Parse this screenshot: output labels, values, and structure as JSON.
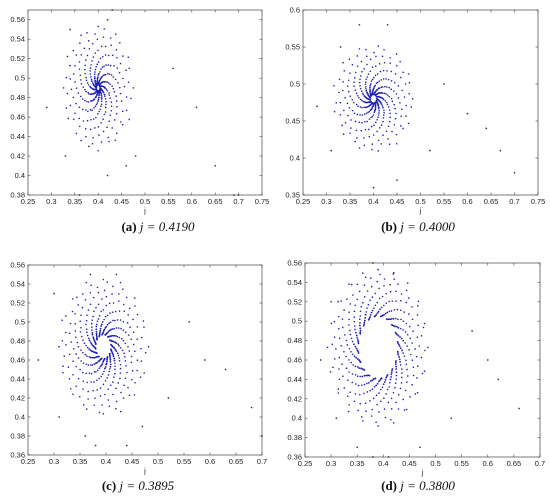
{
  "chart_data": [
    {
      "type": "scatter",
      "panel_tag": "(a)",
      "caption_eq": "j = 0.4190",
      "xlabel": "j",
      "ylabel": "",
      "xlim": [
        0.25,
        0.75
      ],
      "ylim": [
        0.38,
        0.57
      ],
      "xticks": [
        "0.25",
        "0.3",
        "0.35",
        "0.4",
        "0.45",
        "0.5",
        "0.55",
        "0.6",
        "0.65",
        "0.7",
        "0.75"
      ],
      "yticks": [
        "0.38",
        "0.4",
        "0.42",
        "0.44",
        "0.46",
        "0.48",
        "0.5",
        "0.52",
        "0.54",
        "0.56"
      ],
      "spiral": {
        "center": [
          0.4,
          0.49
        ],
        "inner_radius": 0.004,
        "outer_radius": 0.075,
        "arms": 12,
        "points_per_arm": 26,
        "turn": 1.6
      },
      "series": [
        {
          "color": "#1f1fb4",
          "x": [
            0.69,
            0.7,
            0.65,
            0.61,
            0.56,
            0.42,
            0.42,
            0.34,
            0.29,
            0.33,
            0.38,
            0.36,
            0.43,
            0.46,
            0.48
          ],
          "y": [
            0.38,
            0.38,
            0.41,
            0.47,
            0.51,
            0.56,
            0.4,
            0.55,
            0.47,
            0.42,
            0.43,
            0.38,
            0.57,
            0.41,
            0.42
          ]
        }
      ],
      "grid": false,
      "legend": "none"
    },
    {
      "type": "scatter",
      "panel_tag": "(b)",
      "caption_eq": "j = 0.4000",
      "xlabel": "j",
      "ylabel": "",
      "xlim": [
        0.25,
        0.75
      ],
      "ylim": [
        0.35,
        0.6
      ],
      "xticks": [
        "0.25",
        "0.3",
        "0.35",
        "0.4",
        "0.45",
        "0.5",
        "0.55",
        "0.6",
        "0.65",
        "0.7",
        "0.75"
      ],
      "yticks": [
        "0.35",
        "0.4",
        "0.45",
        "0.5",
        "0.55",
        "0.6"
      ],
      "spiral": {
        "center": [
          0.4,
          0.48
        ],
        "inner_radius": 0.007,
        "outer_radius": 0.085,
        "arms": 13,
        "points_per_arm": 26,
        "turn": 1.5
      },
      "series": [
        {
          "color": "#1f1fb4",
          "x": [
            0.7,
            0.67,
            0.64,
            0.6,
            0.55,
            0.43,
            0.37,
            0.33,
            0.28,
            0.31,
            0.4,
            0.45,
            0.52
          ],
          "y": [
            0.38,
            0.41,
            0.44,
            0.46,
            0.5,
            0.58,
            0.58,
            0.55,
            0.47,
            0.41,
            0.36,
            0.37,
            0.41
          ]
        }
      ],
      "grid": false,
      "legend": "none"
    },
    {
      "type": "scatter",
      "panel_tag": "(c)",
      "caption_eq": "j = 0.3895",
      "xlabel": "j",
      "ylabel": "",
      "xlim": [
        0.25,
        0.7
      ],
      "ylim": [
        0.36,
        0.56
      ],
      "xticks": [
        "0.25",
        "0.3",
        "0.35",
        "0.4",
        "0.45",
        "0.5",
        "0.55",
        "0.6",
        "0.65",
        "0.7"
      ],
      "yticks": [
        "0.36",
        "0.38",
        "0.4",
        "0.42",
        "0.44",
        "0.46",
        "0.48",
        "0.5",
        "0.52",
        "0.54",
        "0.56"
      ],
      "spiral": {
        "center": [
          0.395,
          0.474
        ],
        "inner_radius": 0.015,
        "outer_radius": 0.085,
        "arms": 16,
        "points_per_arm": 24,
        "turn": 1.3
      },
      "series": [
        {
          "color": "#1f1fb4",
          "x": [
            0.68,
            0.63,
            0.59,
            0.56,
            0.42,
            0.37,
            0.3,
            0.27,
            0.31,
            0.36,
            0.38,
            0.44,
            0.47,
            0.52,
            0.7
          ],
          "y": [
            0.41,
            0.45,
            0.46,
            0.5,
            0.55,
            0.55,
            0.53,
            0.46,
            0.4,
            0.38,
            0.37,
            0.37,
            0.39,
            0.42,
            0.38
          ]
        }
      ],
      "grid": false,
      "legend": "none"
    },
    {
      "type": "scatter",
      "panel_tag": "(d)",
      "caption_eq": "j = 0.3800",
      "xlabel": "j",
      "ylabel": "",
      "xlim": [
        0.25,
        0.7
      ],
      "ylim": [
        0.36,
        0.56
      ],
      "xticks": [
        "0.25",
        "0.3",
        "0.35",
        "0.4",
        "0.45",
        "0.5",
        "0.55",
        "0.6",
        "0.65",
        "0.7"
      ],
      "yticks": [
        "0.36",
        "0.38",
        "0.4",
        "0.42",
        "0.44",
        "0.46",
        "0.48",
        "0.5",
        "0.52",
        "0.54",
        "0.56"
      ],
      "spiral": {
        "center": [
          0.39,
          0.473
        ],
        "inner_radius": 0.038,
        "outer_radius": 0.095,
        "arms": 20,
        "points_per_arm": 18,
        "turn": 0.9
      },
      "series": [
        {
          "color": "#1f1fb4",
          "x": [
            0.66,
            0.62,
            0.6,
            0.57,
            0.42,
            0.38,
            0.3,
            0.28,
            0.31,
            0.35,
            0.38,
            0.41,
            0.47,
            0.53
          ],
          "y": [
            0.41,
            0.44,
            0.46,
            0.49,
            0.55,
            0.56,
            0.52,
            0.46,
            0.4,
            0.37,
            0.36,
            0.36,
            0.37,
            0.4
          ]
        }
      ],
      "grid": false,
      "legend": "none"
    }
  ]
}
